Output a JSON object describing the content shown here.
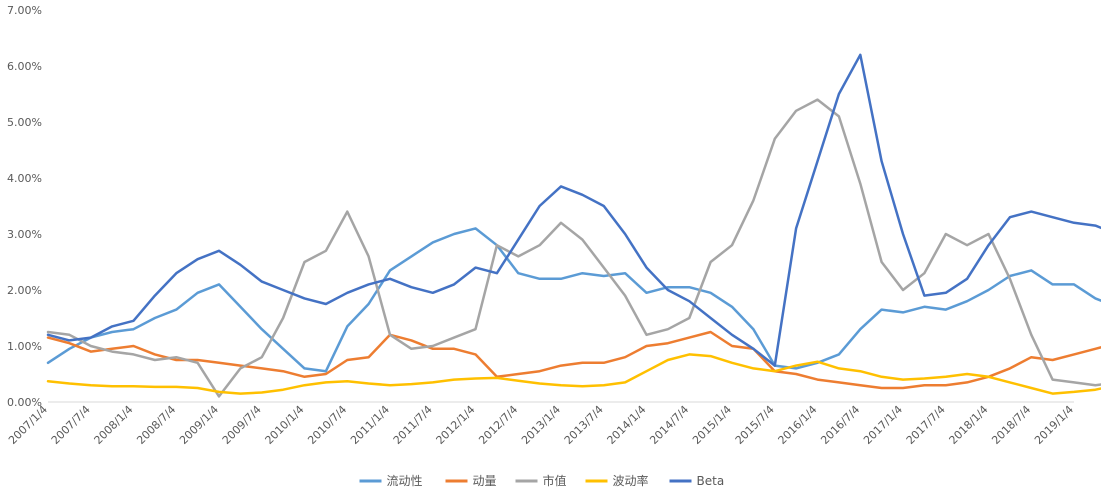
{
  "chart_data": {
    "type": "line",
    "title": "",
    "xlabel": "",
    "ylabel": "",
    "ylim": [
      0,
      7
    ],
    "y_unit": "%",
    "y_ticks": [
      "0.00%",
      "1.00%",
      "2.00%",
      "3.00%",
      "4.00%",
      "5.00%",
      "6.00%",
      "7.00%"
    ],
    "x_ticks": [
      "2007/1/4",
      "2007/7/4",
      "2008/1/4",
      "2008/7/4",
      "2009/1/4",
      "2009/7/4",
      "2010/1/4",
      "2010/7/4",
      "2011/1/4",
      "2011/7/4",
      "2012/1/4",
      "2012/7/4",
      "2013/1/4",
      "2013/7/4",
      "2014/1/4",
      "2014/7/4",
      "2015/1/4",
      "2015/7/4",
      "2016/1/4",
      "2016/7/4",
      "2017/1/4",
      "2017/7/4",
      "2018/1/4",
      "2018/7/4",
      "2019/1/4"
    ],
    "grid": false,
    "legend": "bottom",
    "series": [
      {
        "name": "流动性",
        "color": "#5B9BD5",
        "x": [
          0,
          0.5,
          1,
          1.5,
          2,
          2.5,
          3,
          3.5,
          4,
          4.5,
          5,
          5.5,
          6,
          6.5,
          7,
          7.5,
          8,
          8.5,
          9,
          9.5,
          10,
          10.5,
          11,
          11.5,
          12,
          12.5,
          13,
          13.5,
          14,
          14.5,
          15,
          15.5,
          16,
          16.5,
          17,
          17.5,
          18,
          18.5,
          19,
          19.5,
          20,
          20.5,
          21,
          21.5,
          22,
          22.5,
          23,
          23.5,
          24,
          24.5,
          25
        ],
        "values": [
          0.7,
          0.95,
          1.15,
          1.25,
          1.3,
          1.5,
          1.65,
          1.95,
          2.1,
          1.7,
          1.3,
          0.95,
          0.6,
          0.55,
          1.35,
          1.75,
          2.35,
          2.6,
          2.85,
          3.0,
          3.1,
          2.8,
          2.3,
          2.2,
          2.2,
          2.3,
          2.25,
          2.3,
          1.95,
          2.05,
          2.05,
          1.95,
          1.7,
          1.3,
          0.65,
          0.6,
          0.7,
          0.85,
          1.3,
          1.65,
          1.6,
          1.7,
          1.65,
          1.8,
          2.0,
          2.25,
          2.35,
          2.1,
          2.1,
          1.85,
          1.7
        ]
      },
      {
        "name": "动量",
        "color": "#ED7D31",
        "x": [
          0,
          0.5,
          1,
          1.5,
          2,
          2.5,
          3,
          3.5,
          4,
          4.5,
          5,
          5.5,
          6,
          6.5,
          7,
          7.5,
          8,
          8.5,
          9,
          9.5,
          10,
          10.5,
          11,
          11.5,
          12,
          12.5,
          13,
          13.5,
          14,
          14.5,
          15,
          15.5,
          16,
          16.5,
          17,
          17.5,
          18,
          18.5,
          19,
          19.5,
          20,
          20.5,
          21,
          21.5,
          22,
          22.5,
          23,
          23.5,
          24,
          24.5,
          25
        ],
        "values": [
          1.15,
          1.05,
          0.9,
          0.95,
          1.0,
          0.85,
          0.75,
          0.75,
          0.7,
          0.65,
          0.6,
          0.55,
          0.45,
          0.5,
          0.75,
          0.8,
          1.2,
          1.1,
          0.95,
          0.95,
          0.85,
          0.45,
          0.5,
          0.55,
          0.65,
          0.7,
          0.7,
          0.8,
          1.0,
          1.05,
          1.15,
          1.25,
          1.0,
          0.95,
          0.55,
          0.5,
          0.4,
          0.35,
          0.3,
          0.25,
          0.25,
          0.3,
          0.3,
          0.35,
          0.45,
          0.6,
          0.8,
          0.75,
          0.85,
          0.95,
          1.05
        ]
      },
      {
        "name": "市值",
        "color": "#A5A5A5",
        "x": [
          0,
          0.5,
          1,
          1.5,
          2,
          2.5,
          3,
          3.5,
          4,
          4.5,
          5,
          5.5,
          6,
          6.5,
          7,
          7.5,
          8,
          8.5,
          9,
          9.5,
          10,
          10.5,
          11,
          11.5,
          12,
          12.5,
          13,
          13.5,
          14,
          14.5,
          15,
          15.5,
          16,
          16.5,
          17,
          17.5,
          18,
          18.5,
          19,
          19.5,
          20,
          20.5,
          21,
          21.5,
          22,
          22.5,
          23,
          23.5,
          24,
          24.5,
          25
        ],
        "values": [
          1.25,
          1.2,
          1.0,
          0.9,
          0.85,
          0.75,
          0.8,
          0.7,
          0.1,
          0.6,
          0.8,
          1.5,
          2.5,
          2.7,
          3.4,
          2.6,
          1.2,
          0.95,
          1.0,
          1.15,
          1.3,
          2.8,
          2.6,
          2.8,
          3.2,
          2.9,
          2.4,
          1.9,
          1.2,
          1.3,
          1.5,
          2.5,
          2.8,
          3.6,
          4.7,
          5.2,
          5.4,
          5.1,
          3.9,
          2.5,
          2.0,
          2.3,
          3.0,
          2.8,
          3.0,
          2.2,
          1.2,
          0.4,
          0.35,
          0.3,
          0.35
        ]
      },
      {
        "name": "波动率",
        "color": "#FFC000",
        "x": [
          0,
          0.5,
          1,
          1.5,
          2,
          2.5,
          3,
          3.5,
          4,
          4.5,
          5,
          5.5,
          6,
          6.5,
          7,
          7.5,
          8,
          8.5,
          9,
          9.5,
          10,
          10.5,
          11,
          11.5,
          12,
          12.5,
          13,
          13.5,
          14,
          14.5,
          15,
          15.5,
          16,
          16.5,
          17,
          17.5,
          18,
          18.5,
          19,
          19.5,
          20,
          20.5,
          21,
          21.5,
          22,
          22.5,
          23,
          23.5,
          24,
          24.5,
          25
        ],
        "values": [
          0.37,
          0.33,
          0.3,
          0.28,
          0.28,
          0.27,
          0.27,
          0.25,
          0.18,
          0.15,
          0.17,
          0.22,
          0.3,
          0.35,
          0.37,
          0.33,
          0.3,
          0.32,
          0.35,
          0.4,
          0.42,
          0.43,
          0.38,
          0.33,
          0.3,
          0.28,
          0.3,
          0.35,
          0.55,
          0.75,
          0.85,
          0.82,
          0.7,
          0.6,
          0.55,
          0.65,
          0.72,
          0.6,
          0.55,
          0.45,
          0.4,
          0.42,
          0.45,
          0.5,
          0.45,
          0.35,
          0.25,
          0.15,
          0.18,
          0.22,
          0.3
        ]
      },
      {
        "name": "Beta",
        "color": "#4472C4",
        "x": [
          0,
          0.5,
          1,
          1.5,
          2,
          2.5,
          3,
          3.5,
          4,
          4.5,
          5,
          5.5,
          6,
          6.5,
          7,
          7.5,
          8,
          8.5,
          9,
          9.5,
          10,
          10.5,
          11,
          11.5,
          12,
          12.5,
          13,
          13.5,
          14,
          14.5,
          15,
          15.5,
          16,
          16.5,
          17,
          17.5,
          18,
          18.5,
          19,
          19.5,
          20,
          20.5,
          21,
          21.5,
          22,
          22.5,
          23,
          23.5,
          24,
          24.5,
          25
        ],
        "values": [
          1.2,
          1.1,
          1.15,
          1.35,
          1.45,
          1.9,
          2.3,
          2.55,
          2.7,
          2.45,
          2.15,
          2.0,
          1.85,
          1.75,
          1.95,
          2.1,
          2.2,
          2.05,
          1.95,
          2.1,
          2.4,
          2.3,
          2.9,
          3.5,
          3.85,
          3.7,
          3.5,
          3.0,
          2.4,
          2.0,
          1.8,
          1.5,
          1.2,
          0.95,
          0.65,
          3.1,
          4.3,
          5.5,
          6.2,
          4.3,
          3.0,
          1.9,
          1.95,
          2.2,
          2.8,
          3.3,
          3.4,
          3.3,
          3.2,
          3.15,
          3.0
        ]
      }
    ]
  }
}
